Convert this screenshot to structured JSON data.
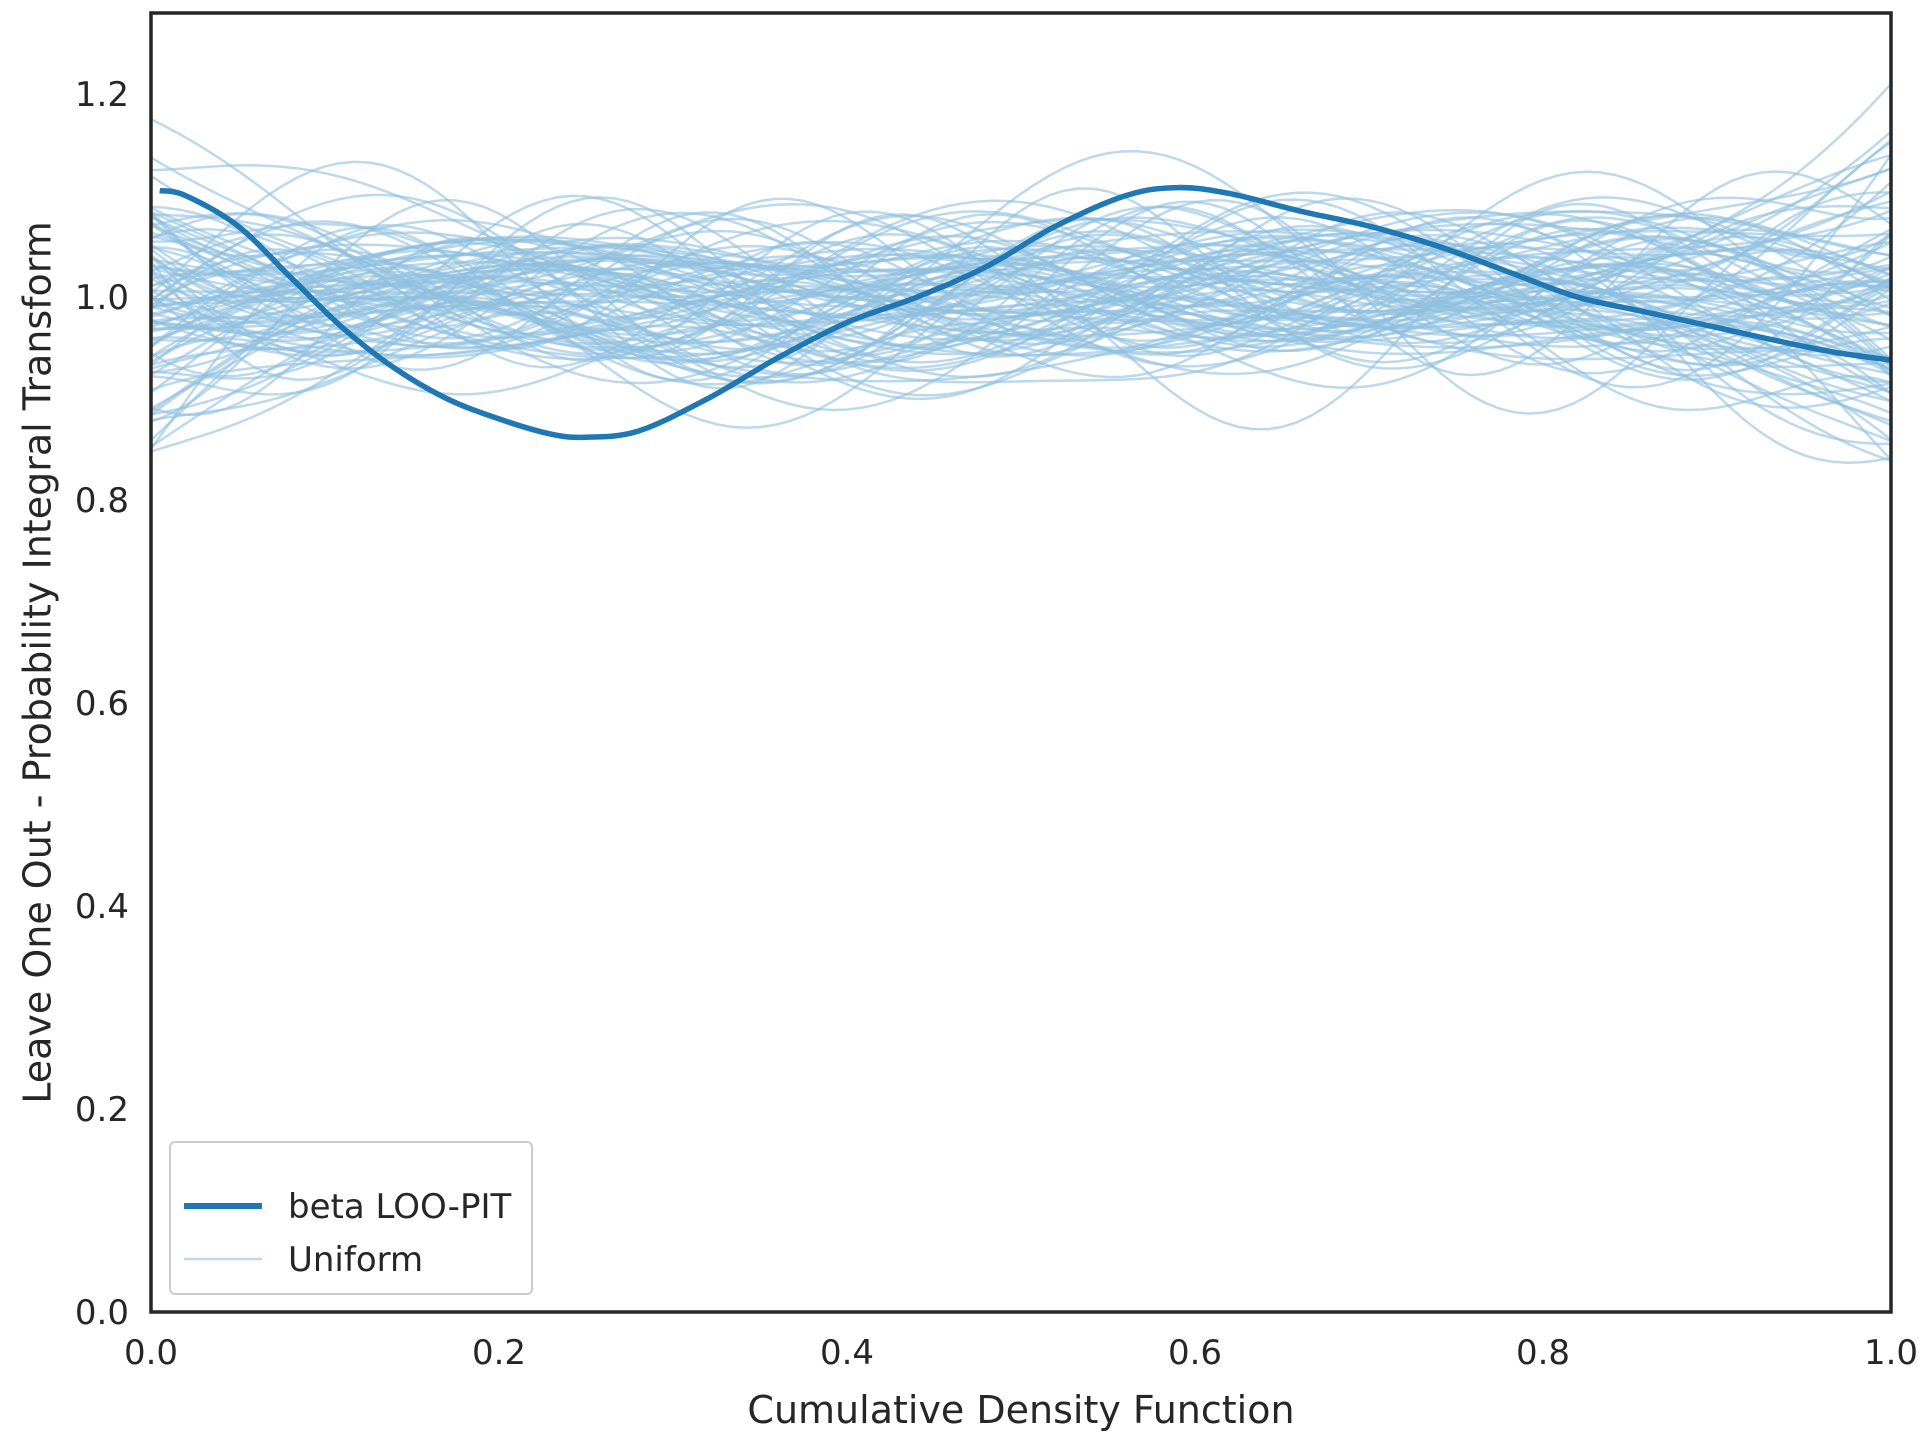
{
  "chart_data": {
    "type": "line",
    "title": "",
    "xlabel": "Cumulative Density Function",
    "ylabel": "Leave One Out - Probability Integral Transform",
    "xlim": [
      0.0,
      1.0
    ],
    "ylim": [
      0.0,
      1.28
    ],
    "xticks": [
      0.0,
      0.2,
      0.4,
      0.6,
      0.8,
      1.0
    ],
    "xtick_labels": [
      "0.0",
      "0.2",
      "0.4",
      "0.6",
      "0.8",
      "1.0"
    ],
    "yticks": [
      0.0,
      0.2,
      0.4,
      0.6,
      0.8,
      1.0,
      1.2
    ],
    "ytick_labels": [
      "0.0",
      "0.2",
      "0.4",
      "0.6",
      "0.8",
      "1.0",
      "1.2"
    ],
    "grid": false,
    "legend_position": "lower-left",
    "colors": {
      "main": "#1f77b4",
      "uniform": "#8fbfe0",
      "axes": "#262626"
    },
    "series": [
      {
        "name": "beta LOO-PIT",
        "x": [
          0.005,
          0.02,
          0.05,
          0.08,
          0.11,
          0.14,
          0.17,
          0.2,
          0.23,
          0.25,
          0.28,
          0.32,
          0.36,
          0.4,
          0.44,
          0.48,
          0.52,
          0.56,
          0.59,
          0.62,
          0.66,
          0.7,
          0.74,
          0.78,
          0.82,
          0.86,
          0.9,
          0.94,
          0.97,
          1.0
        ],
        "y": [
          1.105,
          1.1,
          1.07,
          1.02,
          0.97,
          0.93,
          0.9,
          0.88,
          0.865,
          0.862,
          0.868,
          0.9,
          0.94,
          0.975,
          1.0,
          1.03,
          1.07,
          1.1,
          1.108,
          1.102,
          1.085,
          1.07,
          1.05,
          1.025,
          1.0,
          0.985,
          0.97,
          0.955,
          0.945,
          0.938
        ]
      },
      {
        "name": "Uniform",
        "note_x": [
          0.0,
          1.0
        ],
        "y_center": 1.0,
        "y_spread": [
          0.78,
          1.26
        ]
      }
    ]
  },
  "legend": {
    "main_label": "beta LOO-PIT",
    "uniform_label": "Uniform"
  }
}
